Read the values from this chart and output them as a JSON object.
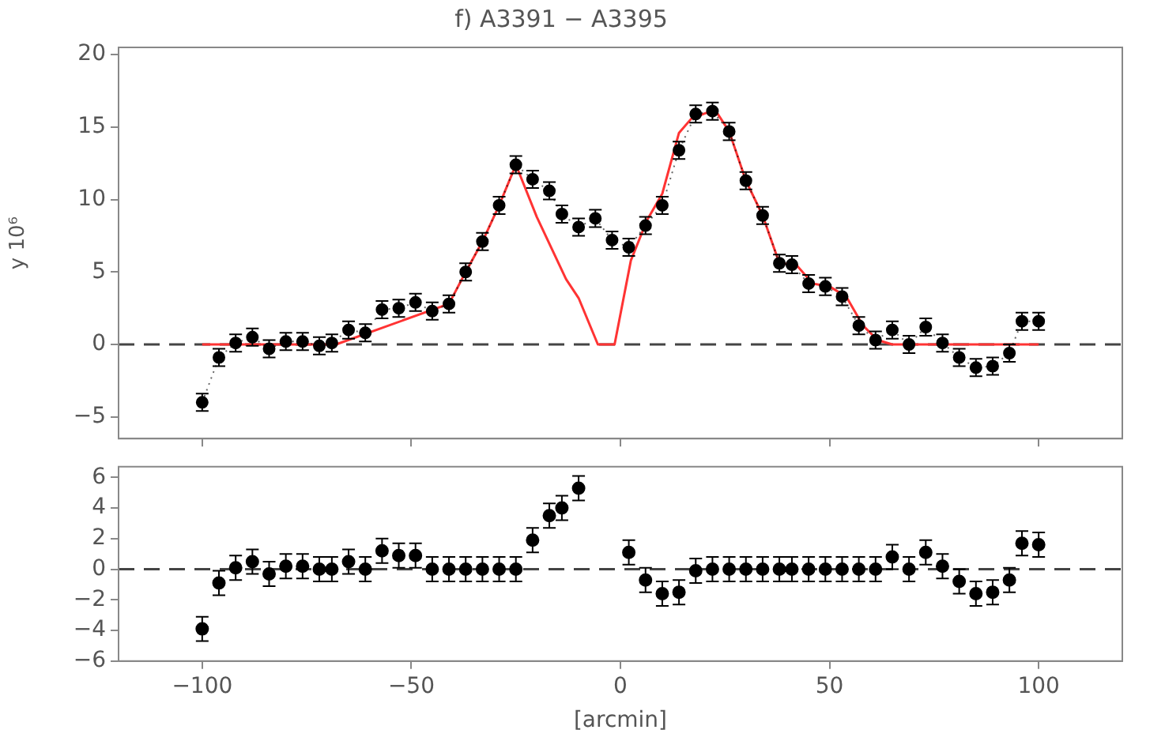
{
  "chart_data": [
    {
      "type": "line",
      "title": "f) A3391 − A3395",
      "ylabel": "y 10⁶",
      "xlim": [
        -120,
        120
      ],
      "xticks": [
        -100,
        -50,
        0,
        50,
        100
      ],
      "ylim": [
        -6.5,
        20.5
      ],
      "yticks": [
        -5,
        0,
        5,
        10,
        15,
        20
      ],
      "tick_labels": "y",
      "ref_lines": [
        {
          "axis": "y",
          "value": 0,
          "line_style": "dashed",
          "color": "#444444"
        }
      ],
      "series": [
        {
          "line_style": "dotted",
          "marker": "circle",
          "color": "#000000",
          "x": [
            -100,
            -96,
            -92,
            -88,
            -84,
            -80,
            -76,
            -72,
            -69,
            -65,
            -61,
            -57,
            -53,
            -49,
            -45,
            -41,
            -37,
            -33,
            -29,
            -25,
            -21,
            -17,
            -14,
            -10,
            -6,
            -2,
            2,
            6,
            10,
            14,
            18,
            22,
            26,
            30,
            34,
            38,
            41,
            45,
            49,
            53,
            57,
            61,
            65,
            69,
            73,
            77,
            81,
            85,
            89,
            93,
            96,
            100
          ],
          "values": [
            -4.0,
            -0.9,
            0.1,
            0.5,
            -0.3,
            0.2,
            0.2,
            -0.1,
            0.1,
            1.0,
            0.8,
            2.4,
            2.5,
            2.9,
            2.3,
            2.8,
            5.0,
            7.1,
            9.6,
            12.4,
            11.4,
            10.6,
            9.0,
            8.1,
            8.7,
            7.2,
            6.7,
            8.2,
            9.6,
            13.4,
            15.9,
            16.1,
            14.7,
            11.3,
            8.9,
            5.6,
            5.5,
            4.2,
            4.0,
            3.3,
            1.3,
            0.3,
            1.0,
            0.0,
            1.2,
            0.1,
            -0.9,
            -1.6,
            -1.5,
            -0.6,
            1.6,
            1.6
          ],
          "errors": [
            0.6,
            0.6,
            0.6,
            0.6,
            0.6,
            0.6,
            0.6,
            0.6,
            0.6,
            0.6,
            0.6,
            0.6,
            0.6,
            0.6,
            0.6,
            0.6,
            0.6,
            0.6,
            0.6,
            0.6,
            0.6,
            0.6,
            0.6,
            0.6,
            0.6,
            0.6,
            0.6,
            0.6,
            0.6,
            0.6,
            0.6,
            0.6,
            0.6,
            0.6,
            0.6,
            0.6,
            0.6,
            0.6,
            0.6,
            0.6,
            0.6,
            0.6,
            0.6,
            0.6,
            0.6,
            0.6,
            0.6,
            0.6,
            0.6,
            0.6,
            0.6,
            0.6
          ]
        },
        {
          "line_style": "solid",
          "marker": "none",
          "color": "#ff3333",
          "x": [
            -100,
            -68,
            -41,
            -37,
            -33,
            -29,
            -25,
            -20,
            -13,
            -10,
            -5.4,
            -1.4,
            2.5,
            6.4,
            10,
            14,
            17,
            22.6,
            26,
            30,
            34,
            38,
            42,
            46,
            50,
            54,
            58,
            61.5,
            65,
            100
          ],
          "values": [
            0,
            0,
            2.8,
            5.0,
            7.1,
            9.6,
            12.4,
            8.8,
            4.5,
            3.2,
            0,
            0,
            5.8,
            8.6,
            10.4,
            14.6,
            15.6,
            16.2,
            14.7,
            11.3,
            8.9,
            5.6,
            5.5,
            4.2,
            4.0,
            3.3,
            1.3,
            0.3,
            0,
            0
          ]
        }
      ]
    },
    {
      "type": "scatter",
      "xlabel": "[arcmin]",
      "xlim": [
        -120,
        120
      ],
      "xticks": [
        -100,
        -50,
        0,
        50,
        100
      ],
      "ylim": [
        -6,
        6.7
      ],
      "yticks": [
        -6,
        -4,
        -2,
        0,
        2,
        4,
        6
      ],
      "ref_lines": [
        {
          "axis": "y",
          "value": 0,
          "line_style": "dashed",
          "color": "#444444"
        }
      ],
      "series": [
        {
          "marker": "circle",
          "color": "#000000",
          "x": [
            -100,
            -96,
            -92,
            -88,
            -84,
            -80,
            -76,
            -72,
            -69,
            -65,
            -61,
            -57,
            -53,
            -49,
            -45,
            -41,
            -37,
            -33,
            -29,
            -25,
            -21,
            -17,
            -14,
            -10,
            -6,
            -2,
            2,
            6,
            10,
            14,
            18,
            22,
            26,
            30,
            34,
            38,
            41,
            45,
            49,
            53,
            57,
            61,
            65,
            69,
            73,
            77,
            81,
            85,
            89,
            93,
            96,
            100
          ],
          "values": [
            -3.9,
            -0.9,
            0.1,
            0.5,
            -0.3,
            0.2,
            0.2,
            0,
            0,
            0.5,
            0,
            1.2,
            0.9,
            0.9,
            0,
            0,
            0,
            0,
            0,
            0,
            1.9,
            3.5,
            4.0,
            5.3,
            null,
            null,
            1.1,
            -0.7,
            -1.6,
            -1.5,
            -0.1,
            0,
            0,
            0,
            0,
            0,
            0,
            0,
            0,
            0,
            0,
            0,
            0.8,
            0,
            1.1,
            0.2,
            -0.8,
            -1.6,
            -1.5,
            -0.7,
            1.7,
            1.6
          ],
          "errors": [
            0.8,
            0.8,
            0.8,
            0.8,
            0.8,
            0.8,
            0.8,
            0.8,
            0.8,
            0.8,
            0.8,
            0.8,
            0.8,
            0.8,
            0.8,
            0.8,
            0.8,
            0.8,
            0.8,
            0.8,
            0.8,
            0.8,
            0.8,
            0.8,
            null,
            null,
            0.8,
            0.8,
            0.8,
            0.8,
            0.8,
            0.8,
            0.8,
            0.8,
            0.8,
            0.8,
            0.8,
            0.8,
            0.8,
            0.8,
            0.8,
            0.8,
            0.8,
            0.8,
            0.8,
            0.8,
            0.8,
            0.8,
            0.8,
            0.8,
            0.8,
            0.8
          ]
        }
      ]
    }
  ]
}
